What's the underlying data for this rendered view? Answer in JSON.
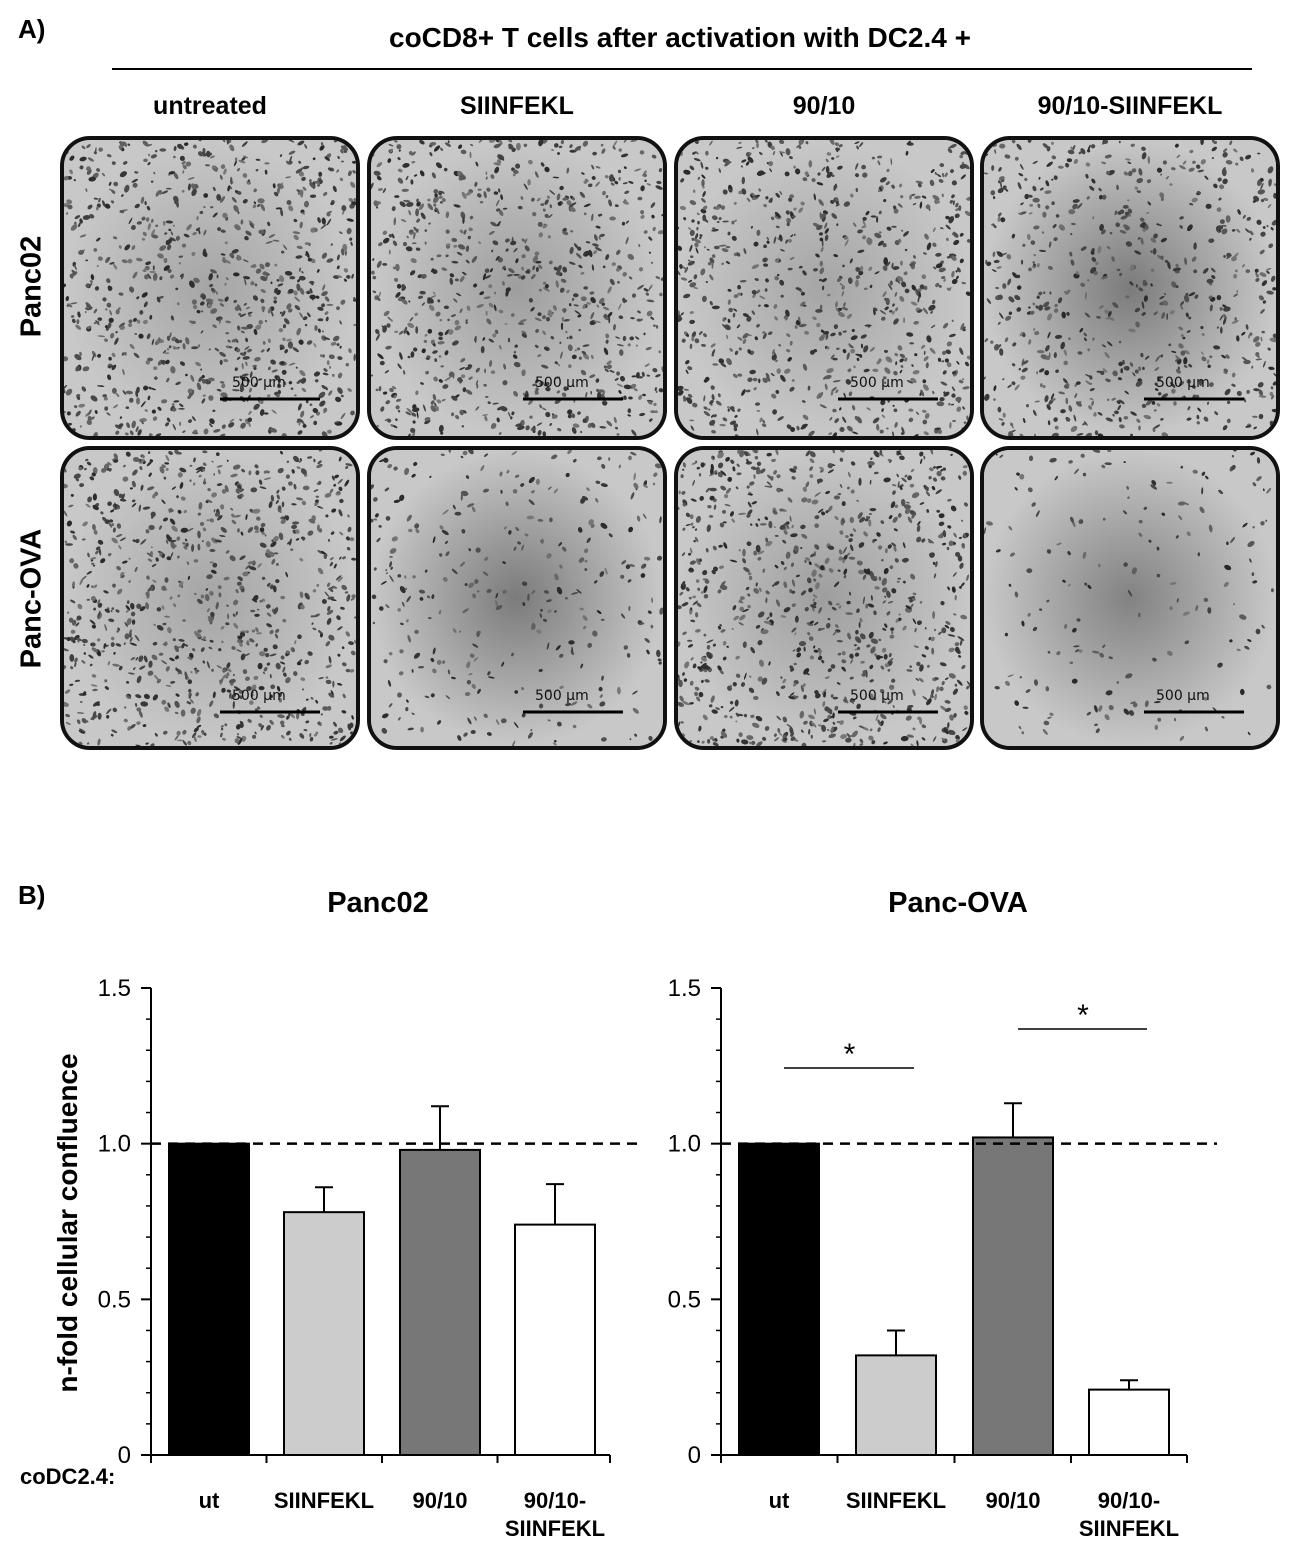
{
  "panel_a": {
    "letter": "A)",
    "header": "coCD8+ T cells after activation with DC2.4 +",
    "columns": [
      "untreated",
      "SIINFEKL",
      "90/10",
      "90/10-SIINFEKL"
    ],
    "rows": [
      "Panc02",
      "Panc-OVA"
    ],
    "scale_bar_label": "500 µm"
  },
  "panel_b": {
    "letter": "B)",
    "x_prefix": "coDC2.4:"
  },
  "chart_data": [
    {
      "type": "bar",
      "title": "Panc02",
      "ylabel": "n-fold cellular confluence",
      "categories": [
        "ut",
        "SIINFEKL",
        "90/10",
        "90/10-\nSIINFEKL"
      ],
      "values": [
        1.0,
        0.78,
        0.98,
        0.74
      ],
      "errors": [
        0,
        0.08,
        0.14,
        0.13
      ],
      "bar_colors": [
        "#000000",
        "#cccccc",
        "#777777",
        "#ffffff"
      ],
      "ylim": [
        0,
        1.5
      ],
      "yticks": [
        "0",
        "0.5",
        "1.0",
        "1.5"
      ],
      "reference_line": 1.0,
      "significance": []
    },
    {
      "type": "bar",
      "title": "Panc-OVA",
      "ylabel": "",
      "categories": [
        "ut",
        "SIINFEKL",
        "90/10",
        "90/10-\nSIINFEKL"
      ],
      "values": [
        1.0,
        0.32,
        1.02,
        0.21
      ],
      "errors": [
        0,
        0.08,
        0.11,
        0.03
      ],
      "bar_colors": [
        "#000000",
        "#cccccc",
        "#777777",
        "#ffffff"
      ],
      "ylim": [
        0,
        1.5
      ],
      "yticks": [
        "0",
        "0.5",
        "1.0",
        "1.5"
      ],
      "reference_line": 1.0,
      "significance": [
        {
          "from": 0,
          "to": 1,
          "label": "*"
        },
        {
          "from": 2,
          "to": 3,
          "label": "*"
        }
      ]
    }
  ]
}
